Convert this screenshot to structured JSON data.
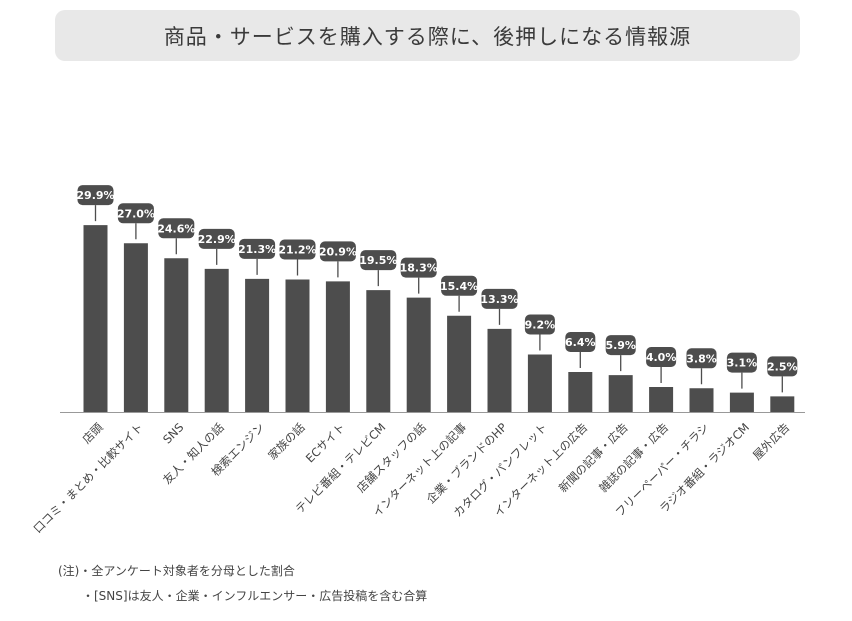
{
  "title": "商品・サービスを購入する際に、後押しになる情報源",
  "chart_data": {
    "type": "bar",
    "categories": [
      "店頭",
      "口コミ・まとめ・比較サイト",
      "SNS",
      "友人・知人の話",
      "検索エンジン",
      "家族の話",
      "ECサイト",
      "テレビ番組・テレビCM",
      "店舗スタッフの話",
      "インターネット上の記事",
      "企業・ブランドのHP",
      "カタログ・パンフレット",
      "インターネット上の広告",
      "新聞の記事・広告",
      "雑誌の記事・広告",
      "フリーペーパー・チラシ",
      "ラジオ番組・ラジオCM",
      "屋外広告"
    ],
    "values": [
      29.9,
      27.0,
      24.6,
      22.9,
      21.3,
      21.2,
      20.9,
      19.5,
      18.3,
      15.4,
      13.3,
      9.2,
      6.4,
      5.9,
      4.0,
      3.8,
      3.1,
      2.5
    ],
    "value_labels": [
      "29.9%",
      "27.0%",
      "24.6%",
      "22.9%",
      "21.3%",
      "21.2%",
      "20.9%",
      "19.5%",
      "18.3%",
      "15.4%",
      "13.3%",
      "9.2%",
      "6.4%",
      "5.9%",
      "4.0%",
      "3.8%",
      "3.1%",
      "2.5%"
    ],
    "unit": "%",
    "bar_color": "#4d4d4d",
    "label_bg_color": "#4d4d4d",
    "label_text_color": "#ffffff",
    "grid": false
  },
  "notes": [
    "(注)・全アンケート対象者を分母とした割合",
    "・[SNS]は友人・企業・インフルエンサー・広告投稿を含む合算"
  ]
}
